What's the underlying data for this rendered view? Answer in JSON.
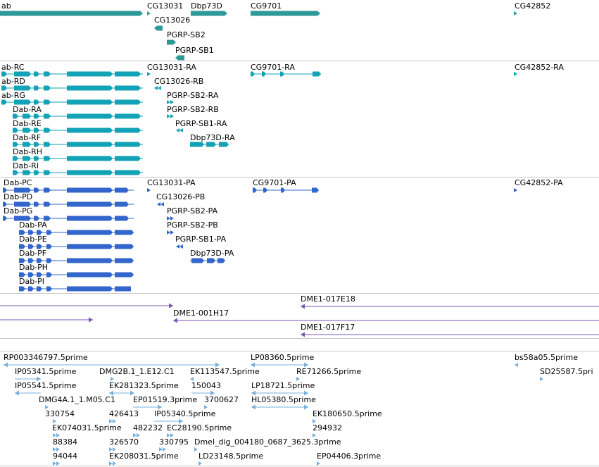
{
  "colors": {
    "gene": "#2e9a98",
    "transcript": "#12a3b6",
    "cds": "#3366cc",
    "clone": "#7a55b0",
    "est": "#7ab0dc",
    "divider": "#c8c8c8"
  },
  "tracks": [
    {
      "name": "genes",
      "labels": [
        "ab",
        "CG13031",
        "Dbp73D",
        "CG9701",
        "CG42852",
        "CG13026",
        "PGRP-SB2",
        "PGRP-SB1"
      ]
    },
    {
      "name": "transcripts",
      "labels": [
        "ab-RC",
        "CG13031-RA",
        "CG9701-RA",
        "CG42852-RA",
        "ab-RD",
        "CG13026-RB",
        "ab-RG",
        "PGRP-SB2-RA",
        "Dab-RA",
        "PGRP-SB2-RB",
        "Dab-RE",
        "PGRP-SB1-RA",
        "Dab-RF",
        "Dbp73D-RA",
        "Dab-RH",
        "Dab-RI"
      ]
    },
    {
      "name": "proteins",
      "labels": [
        "Dab-PC",
        "CG13031-PA",
        "CG9701-PA",
        "CG42852-PA",
        "Dab-PD",
        "CG13026-PB",
        "Dab-PG",
        "PGRP-SB2-PA",
        "Dab-PA",
        "PGRP-SB2-PB",
        "Dab-PE",
        "PGRP-SB1-PA",
        "Dab-PF",
        "Dbp73D-PA",
        "Dab-PH",
        "Dab-PI"
      ]
    },
    {
      "name": "clones",
      "labels": [
        "DME1-017E18",
        "DME1-001H17",
        "DME1-017F17"
      ]
    },
    {
      "name": "ests",
      "labels": [
        "RP003346797.5prime",
        "LP08360.5prime",
        "bs58a05.5prime",
        "IP05341.5prime",
        "DMG2B.1_1.E12.C1",
        "EK113547.5prime",
        "RE71266.5prime",
        "SD25587.5pri",
        "IP05541.5prime",
        "EK281323.5prime",
        "150043",
        "LP18721.5prime",
        "DMG4A.1_1.M05.C1",
        "EP01519.3prime",
        "3700627",
        "HL05380.5prime",
        "330754",
        "426413",
        "IP05340.5prime",
        "EK180650.5prime",
        "EK074031.5prime",
        "482232",
        "EC28190.5prime",
        "294932",
        "88384",
        "326570",
        "330795",
        "Dmel_dig_004180_0687_3625.3prime",
        "94044",
        "EK208031.5prime",
        "LD23148.5prime",
        "EP04406.3prime"
      ]
    }
  ]
}
